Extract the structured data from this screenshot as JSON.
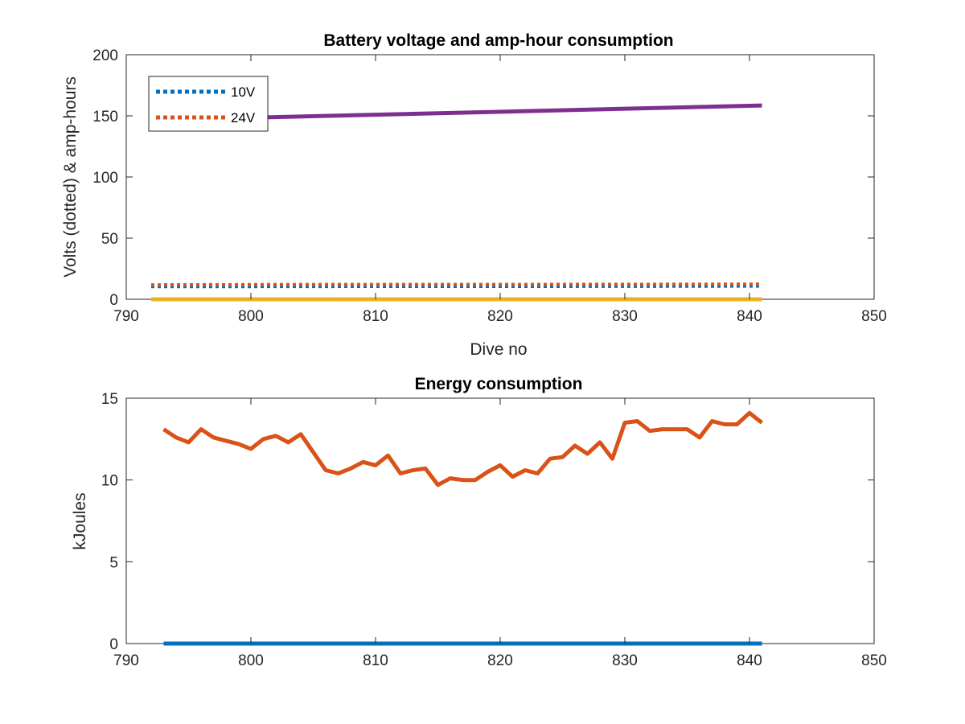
{
  "chart_data": [
    {
      "type": "line",
      "title": "Battery voltage and amp-hour consumption",
      "xlabel": "Dive no",
      "ylabel": "Volts (dotted) & amp-hours",
      "xlim": [
        790,
        850
      ],
      "ylim": [
        0,
        200
      ],
      "xticks": [
        790,
        800,
        810,
        820,
        830,
        840,
        850
      ],
      "yticks": [
        0,
        50,
        100,
        150,
        200
      ],
      "grid": false,
      "legend_position": "top-left",
      "series": [
        {
          "name": "10V",
          "style": "dotted",
          "color": "#0072BD",
          "x": [
            792,
            800,
            810,
            820,
            830,
            841
          ],
          "y": [
            10.3,
            10.4,
            10.5,
            10.5,
            10.6,
            10.8
          ]
        },
        {
          "name": "24V",
          "style": "dotted",
          "color": "#D95319",
          "x": [
            792,
            800,
            810,
            820,
            830,
            841
          ],
          "y": [
            11.8,
            12.0,
            12.1,
            12.1,
            12.2,
            12.4
          ]
        },
        {
          "style": "solid",
          "color": "#EDB120",
          "x": [
            792,
            841
          ],
          "y": [
            0,
            0
          ]
        },
        {
          "style": "solid",
          "color": "#7E2F8E",
          "x": [
            792,
            841
          ],
          "y": [
            146.5,
            158.5
          ]
        }
      ]
    },
    {
      "type": "line",
      "title": "Energy consumption",
      "xlabel": "",
      "ylabel": "kJoules",
      "xlim": [
        790,
        850
      ],
      "ylim": [
        0,
        15
      ],
      "xticks": [
        790,
        800,
        810,
        820,
        830,
        840,
        850
      ],
      "yticks": [
        0,
        5,
        10,
        15
      ],
      "grid": false,
      "series": [
        {
          "style": "solid",
          "color": "#0072BD",
          "x": [
            793,
            841
          ],
          "y": [
            0,
            0
          ]
        },
        {
          "style": "solid",
          "color": "#D95319",
          "x": [
            793,
            794,
            795,
            796,
            797,
            798,
            799,
            800,
            801,
            802,
            803,
            804,
            805,
            806,
            807,
            808,
            809,
            810,
            811,
            812,
            813,
            814,
            815,
            816,
            817,
            818,
            819,
            820,
            821,
            822,
            823,
            824,
            825,
            826,
            827,
            828,
            829,
            830,
            831,
            832,
            833,
            834,
            835,
            836,
            837,
            838,
            839,
            840,
            841
          ],
          "y": [
            13.1,
            12.6,
            12.3,
            13.1,
            12.6,
            12.4,
            12.2,
            11.9,
            12.5,
            12.7,
            12.3,
            12.8,
            11.7,
            10.6,
            10.4,
            10.7,
            11.1,
            10.9,
            11.5,
            10.4,
            10.6,
            10.7,
            9.7,
            10.1,
            10.0,
            10.0,
            10.5,
            10.9,
            10.2,
            10.6,
            10.4,
            11.3,
            11.4,
            12.1,
            11.6,
            12.3,
            11.3,
            13.5,
            13.6,
            13.0,
            13.1,
            13.1,
            13.1,
            12.6,
            13.6,
            13.4,
            13.4,
            14.1,
            13.5
          ]
        }
      ]
    }
  ]
}
